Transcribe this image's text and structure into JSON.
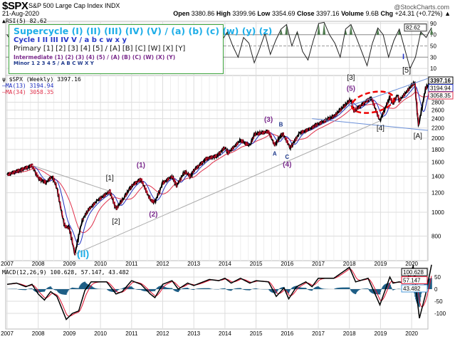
{
  "header": {
    "symbol": "$SPX",
    "name": "S&P 500 Large Cap Index",
    "exchange": "INDX",
    "site": "@StockCharts.com",
    "date": "21-Aug-2020",
    "open_label": "Open",
    "open": "3380.86",
    "high_label": "High",
    "high": "3399.96",
    "low_label": "Low",
    "low": "3354.69",
    "close_label": "Close",
    "close": "3397.16",
    "volume_label": "Volume",
    "volume": "9.6B",
    "chg_label": "Chg",
    "chg": "+24.31 (+0.72%)"
  },
  "legend": {
    "supercycle": "Supercycle (I) (II) (III) (IV) (V) / (a) (b) (c) (w) (y) (z)",
    "cycle": "Cycle I II III IV V / a b c w x y",
    "primary": "Primary [1] [2] [3] [4] [5] / [A] [B] [C] [W] [X] [Y]",
    "intermediate": "Intermediate (1) (2) (3) (4) (5) / (A) (B) (C) (W) (X) (Y)",
    "minor": "Minor 1 2 3 4 5 / A B C W X Y"
  },
  "colors": {
    "price": "#000000",
    "down": "#e0102f",
    "ma13": "#2030c0",
    "ma34": "#e0304a",
    "histogram": "#1f5f86",
    "rsi_fill": "#4d7a4d",
    "grid": "#dddddd",
    "legend_border": "#3aa13a"
  },
  "chart_data": [
    {
      "type": "line",
      "title": "RSI(5) 82.62",
      "label": "RSI(5)",
      "value": "82.62",
      "ylim": [
        0,
        100
      ],
      "yticks": [
        "90",
        "70",
        "50",
        "30",
        "10"
      ],
      "ytick_values": [
        90,
        70,
        50,
        30,
        10
      ],
      "grid": true,
      "x_start": 2007.0,
      "x_end": 2020.64,
      "values": [
        70,
        55,
        80,
        40,
        65,
        75,
        30,
        60,
        85,
        70,
        45,
        20,
        50,
        35,
        60,
        25,
        40,
        15,
        55,
        70,
        40,
        65,
        80,
        75,
        35,
        20,
        55,
        78,
        60,
        30,
        72,
        85,
        50,
        25,
        70,
        40,
        65,
        80,
        45,
        20,
        60,
        75,
        50,
        30,
        65,
        55,
        20,
        45,
        72,
        35,
        60,
        80,
        88,
        50,
        75,
        40,
        25,
        60,
        90,
        92,
        70,
        55,
        30,
        80,
        88,
        65,
        40,
        15,
        55,
        82,
        70,
        30,
        60,
        80,
        45,
        10,
        30,
        75,
        65,
        82.62
      ]
    },
    {
      "type": "line",
      "title": "$SPX (Weekly) 3397.16",
      "label": "$SPX (Weekly)",
      "value": "3397.16",
      "yscale": "log",
      "ylim": [
        640,
        3500
      ],
      "yticks": [
        "2800",
        "2600",
        "2400",
        "2200",
        "2000",
        "1800",
        "1600",
        "1400",
        "1200",
        "1000",
        "800"
      ],
      "ytick_values": [
        2800,
        2600,
        2400,
        2200,
        2000,
        1800,
        1600,
        1400,
        1200,
        1000,
        800
      ],
      "xticks": [
        "2007",
        "2008",
        "2009",
        "2010",
        "2011",
        "2012",
        "2013",
        "2014",
        "2015",
        "2016",
        "2017",
        "2018",
        "2019",
        "2020"
      ],
      "grid": true,
      "series": [
        {
          "name": "$SPX (Weekly)",
          "points": [
            [
              2007.0,
              1420
            ],
            [
              2007.5,
              1500
            ],
            [
              2007.8,
              1550
            ],
            [
              2008.0,
              1380
            ],
            [
              2008.25,
              1320
            ],
            [
              2008.45,
              1400
            ],
            [
              2008.6,
              1260
            ],
            [
              2008.75,
              1000
            ],
            [
              2008.85,
              880
            ],
            [
              2009.0,
              860
            ],
            [
              2009.18,
              676
            ],
            [
              2009.4,
              920
            ],
            [
              2009.6,
              1020
            ],
            [
              2009.9,
              1115
            ],
            [
              2010.3,
              1217
            ],
            [
              2010.5,
              1030
            ],
            [
              2010.75,
              1140
            ],
            [
              2011.0,
              1280
            ],
            [
              2011.3,
              1363
            ],
            [
              2011.6,
              1120
            ],
            [
              2011.75,
              1099
            ],
            [
              2012.0,
              1312
            ],
            [
              2012.3,
              1400
            ],
            [
              2012.45,
              1280
            ],
            [
              2012.7,
              1460
            ],
            [
              2012.9,
              1400
            ],
            [
              2013.0,
              1480
            ],
            [
              2013.4,
              1650
            ],
            [
              2013.75,
              1700
            ],
            [
              2014.0,
              1840
            ],
            [
              2014.1,
              1740
            ],
            [
              2014.5,
              1960
            ],
            [
              2014.8,
              1860
            ],
            [
              2014.95,
              2070
            ],
            [
              2015.4,
              2130
            ],
            [
              2015.6,
              1870
            ],
            [
              2015.85,
              2100
            ],
            [
              2016.1,
              1830
            ],
            [
              2016.4,
              2100
            ],
            [
              2016.7,
              2170
            ],
            [
              2016.9,
              2250
            ],
            [
              2017.5,
              2450
            ],
            [
              2018.05,
              2870
            ],
            [
              2018.15,
              2580
            ],
            [
              2018.7,
              2930
            ],
            [
              2018.98,
              2350
            ],
            [
              2019.3,
              2940
            ],
            [
              2019.4,
              2750
            ],
            [
              2019.55,
              3020
            ],
            [
              2019.6,
              2840
            ],
            [
              2020.1,
              3380
            ],
            [
              2020.22,
              2237
            ],
            [
              2020.45,
              3190
            ],
            [
              2020.64,
              3397.16
            ]
          ]
        }
      ],
      "ma13": {
        "label": "MA(13)",
        "value": "3194.94"
      },
      "ma34": {
        "label": "MA(34)",
        "value": "3058.35"
      },
      "annotations": [
        {
          "text": "[1]",
          "x": 2010.3,
          "y": 1350,
          "color": "#111"
        },
        {
          "text": "[2]",
          "x": 2010.5,
          "y": 900,
          "color": "#111"
        },
        {
          "text": "(1)",
          "x": 2011.3,
          "y": 1520,
          "color": "#7a2a8c"
        },
        {
          "text": "(2)",
          "x": 2011.7,
          "y": 960,
          "color": "#7a2a8c"
        },
        {
          "text": "(3)",
          "x": 2015.4,
          "y": 2330,
          "color": "#7a2a8c"
        },
        {
          "text": "A",
          "x": 2015.6,
          "y": 1700,
          "color": "#1f3a8c"
        },
        {
          "text": "B",
          "x": 2015.8,
          "y": 2230,
          "color": "#1f3a8c"
        },
        {
          "text": "C",
          "x": 2016.0,
          "y": 1650,
          "color": "#1f3a8c"
        },
        {
          "text": "(4)",
          "x": 2016.0,
          "y": 1530,
          "color": "#7a2a8c"
        },
        {
          "text": "[3]",
          "x": 2018.05,
          "y": 3450,
          "color": "#111"
        },
        {
          "text": "(5)",
          "x": 2018.05,
          "y": 3120,
          "color": "#7a2a8c"
        },
        {
          "text": "[4]",
          "x": 2019.0,
          "y": 2150,
          "color": "#111"
        },
        {
          "text": "[A]",
          "x": 2020.2,
          "y": 2000,
          "color": "#111"
        }
      ]
    },
    {
      "type": "line",
      "title": "MACD(12,26,9) 100.628, 57.147, 43.482",
      "label": "MACD(12,26,9)",
      "macd": "100.628",
      "signal": "57.147",
      "histogram": "43.482",
      "ylim": [
        -130,
        110
      ],
      "yticks": [
        "50",
        "0",
        "-50",
        "-100"
      ],
      "ytick_values": [
        50,
        0,
        -50,
        -100
      ],
      "grid": true,
      "points": [
        [
          2007.0,
          20
        ],
        [
          2007.3,
          25
        ],
        [
          2007.6,
          10
        ],
        [
          2007.8,
          20
        ],
        [
          2008.0,
          -20
        ],
        [
          2008.2,
          -45
        ],
        [
          2008.4,
          -10
        ],
        [
          2008.6,
          -30
        ],
        [
          2008.9,
          -125
        ],
        [
          2009.1,
          -100
        ],
        [
          2009.3,
          -90
        ],
        [
          2009.5,
          -5
        ],
        [
          2009.7,
          30
        ],
        [
          2009.9,
          30
        ],
        [
          2010.2,
          30
        ],
        [
          2010.5,
          -20
        ],
        [
          2010.7,
          -10
        ],
        [
          2011.0,
          35
        ],
        [
          2011.3,
          20
        ],
        [
          2011.6,
          -20
        ],
        [
          2011.75,
          -35
        ],
        [
          2012.0,
          20
        ],
        [
          2012.3,
          35
        ],
        [
          2012.5,
          0
        ],
        [
          2012.8,
          25
        ],
        [
          2013.0,
          15
        ],
        [
          2013.5,
          40
        ],
        [
          2013.8,
          35
        ],
        [
          2014.0,
          45
        ],
        [
          2014.2,
          25
        ],
        [
          2014.5,
          45
        ],
        [
          2014.8,
          25
        ],
        [
          2015.0,
          35
        ],
        [
          2015.4,
          30
        ],
        [
          2015.65,
          -30
        ],
        [
          2015.9,
          5
        ],
        [
          2016.05,
          -40
        ],
        [
          2016.3,
          10
        ],
        [
          2016.6,
          30
        ],
        [
          2016.8,
          10
        ],
        [
          2017.0,
          45
        ],
        [
          2017.5,
          45
        ],
        [
          2018.0,
          90
        ],
        [
          2018.2,
          30
        ],
        [
          2018.6,
          45
        ],
        [
          2018.98,
          -65
        ],
        [
          2019.3,
          50
        ],
        [
          2019.4,
          25
        ],
        [
          2019.6,
          30
        ],
        [
          2019.8,
          25
        ],
        [
          2020.05,
          95
        ],
        [
          2020.25,
          -120
        ],
        [
          2020.45,
          -20
        ],
        [
          2020.64,
          100.628
        ]
      ]
    }
  ],
  "wave_labels": {
    "supercycle_II": "(II)",
    "cycle_I": "I",
    "primary_5": "[5]"
  }
}
